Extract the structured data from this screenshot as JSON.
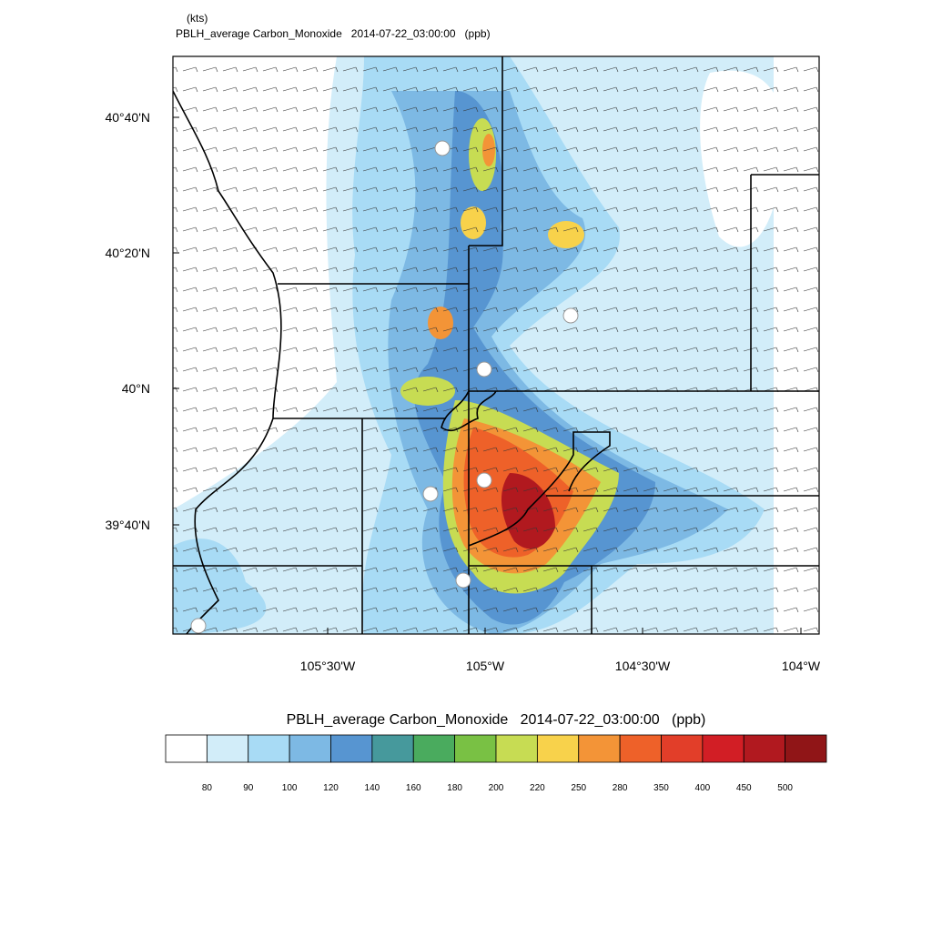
{
  "header": {
    "units": "(kts)",
    "title": "PBLH_average Carbon_Monoxide   2014-07-22_03:00:00   (ppb)"
  },
  "map": {
    "lat_labels": [
      "40°40'N",
      "40°20'N",
      "40°N",
      "39°40'N"
    ],
    "lon_labels": [
      "105°30'W",
      "105°W",
      "104°30'W",
      "104°W"
    ]
  },
  "colorbar": {
    "title": "PBLH_average Carbon_Monoxide   2014-07-22_03:00:00   (ppb)",
    "levels": [
      80,
      90,
      100,
      120,
      140,
      160,
      180,
      200,
      220,
      250,
      280,
      350,
      400,
      450,
      500
    ],
    "colors": [
      "#ffffff",
      "#d2edf9",
      "#a8dbf5",
      "#7db9e4",
      "#5795d1",
      "#46999c",
      "#4aab5e",
      "#79c144",
      "#c7dc53",
      "#f8d24b",
      "#f39437",
      "#ee6129",
      "#e23e29",
      "#d21e25",
      "#b1191f",
      "#901517"
    ]
  }
}
